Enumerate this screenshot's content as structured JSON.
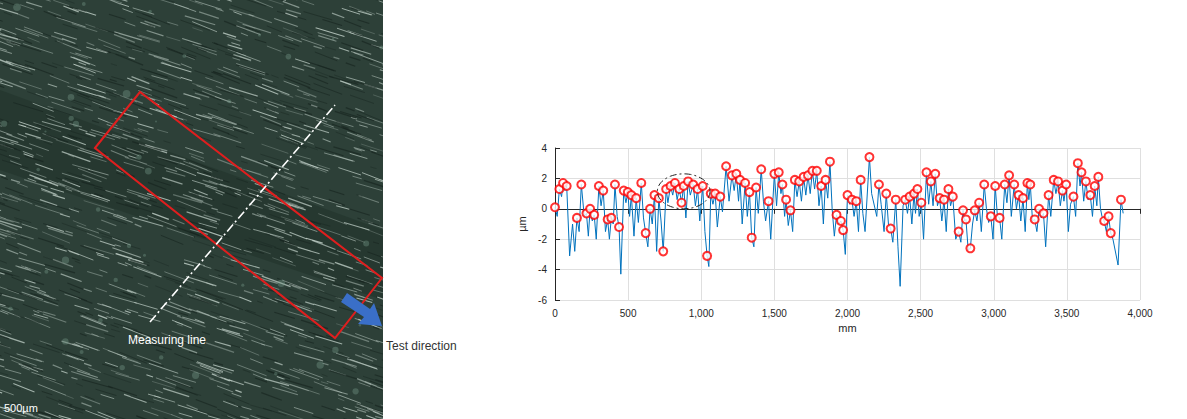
{
  "image": {
    "measuring_line_label": "Measuring line",
    "test_direction_label": "Test direction",
    "scale_bar_label": "500µm"
  },
  "chart_data": {
    "type": "line",
    "x_label": "mm",
    "y_label": "µm",
    "xlim": [
      0,
      4000
    ],
    "xticks": [
      0,
      500,
      {
        "value": 1000,
        "label": "1,000"
      },
      {
        "value": 1500,
        "label": "1,500"
      },
      {
        "value": 2000,
        "label": "2,000"
      },
      {
        "value": 2500,
        "label": "2,500"
      },
      {
        "value": 3000,
        "label": "3,000"
      },
      {
        "value": 3500,
        "label": "3,500"
      },
      {
        "value": 4000,
        "label": "4,000"
      }
    ],
    "ylim": [
      -6,
      4
    ],
    "yticks": [
      -6,
      -4,
      -2,
      0,
      2,
      4
    ],
    "grid": true,
    "region": {
      "x": [
        700,
        1060
      ],
      "y": [
        0.0,
        2.3
      ],
      "line_style": "dashdot"
    },
    "series": [
      {
        "type": "line",
        "marker": "none",
        "color": "#0072bd",
        "x": [
          0,
          15,
          30,
          45,
          55,
          68,
          80,
          100,
          120,
          135,
          150,
          165,
          180,
          200,
          215,
          228,
          240,
          255,
          268,
          282,
          300,
          315,
          330,
          345,
          360,
          372,
          385,
          398,
          410,
          425,
          438,
          450,
          470,
          485,
          498,
          510,
          522,
          540,
          555,
          570,
          590,
          605,
          620,
          635,
          650,
          665,
          680,
          695,
          710,
          725,
          740,
          760,
          772,
          790,
          805,
          820,
          835,
          850,
          865,
          880,
          895,
          910,
          925,
          945,
          960,
          975,
          990,
          1010,
          1025,
          1040,
          1052,
          1065,
          1080,
          1095,
          1110,
          1130,
          1145,
          1170,
          1190,
          1210,
          1225,
          1240,
          1255,
          1265,
          1280,
          1300,
          1315,
          1330,
          1345,
          1360,
          1375,
          1390,
          1410,
          1425,
          1440,
          1460,
          1475,
          1500,
          1515,
          1530,
          1545,
          1555,
          1570,
          1580,
          1595,
          1610,
          1625,
          1640,
          1655,
          1670,
          1685,
          1700,
          1715,
          1730,
          1745,
          1760,
          1775,
          1790,
          1805,
          1820,
          1835,
          1850,
          1865,
          1880,
          1895,
          1910,
          1925,
          1940,
          1955,
          1970,
          1985,
          2000,
          2015,
          2030,
          2045,
          2060,
          2075,
          2090,
          2105,
          2120,
          2150,
          2165,
          2200,
          2215,
          2230,
          2250,
          2265,
          2280,
          2295,
          2310,
          2330,
          2345,
          2360,
          2380,
          2395,
          2410,
          2425,
          2440,
          2455,
          2465,
          2478,
          2490,
          2505,
          2520,
          2540,
          2555,
          2570,
          2585,
          2600,
          2615,
          2630,
          2645,
          2660,
          2675,
          2690,
          2705,
          2720,
          2740,
          2760,
          2775,
          2790,
          2800,
          2810,
          2825,
          2840,
          2855,
          2870,
          2885,
          2900,
          2915,
          2935,
          2950,
          2965,
          2980,
          2995,
          3010,
          3025,
          3040,
          3055,
          3075,
          3090,
          3105,
          3120,
          3140,
          3155,
          3170,
          3185,
          3200,
          3215,
          3230,
          3240,
          3250,
          3265,
          3280,
          3295,
          3310,
          3325,
          3340,
          3355,
          3375,
          3390,
          3410,
          3425,
          3440,
          3455,
          3470,
          3480,
          3495,
          3510,
          3525,
          3545,
          3560,
          3575,
          3590,
          3600,
          3615,
          3630,
          3645,
          3660,
          3675,
          3690,
          3705,
          3715,
          3730,
          3740,
          3755,
          3770,
          3785,
          3800,
          3815,
          3850,
          3870,
          3885
        ],
        "values": [
          0.1,
          -0.5,
          1.3,
          0.8,
          1.7,
          1.2,
          1.5,
          -3.1,
          -1.0,
          -2.8,
          -0.6,
          -1.5,
          1.6,
          -0.5,
          -0.3,
          -1.8,
          0.0,
          -0.8,
          -0.4,
          -2.0,
          1.5,
          0.2,
          1.2,
          -1.5,
          -0.7,
          -2.0,
          -0.6,
          -1.0,
          1.6,
          -0.5,
          -1.2,
          -4.3,
          1.2,
          0.4,
          1.1,
          -0.5,
          0.9,
          -1.8,
          0.7,
          -0.9,
          1.7,
          -0.6,
          -1.6,
          -2.5,
          0.0,
          -1.0,
          0.9,
          -2.8,
          0.7,
          -0.8,
          -2.8,
          1.3,
          0.4,
          1.5,
          0.9,
          1.7,
          0.6,
          1.3,
          0.4,
          1.5,
          -0.6,
          1.8,
          0.9,
          1.6,
          0.2,
          1.3,
          -0.8,
          1.5,
          -1.5,
          -3.1,
          -3.8,
          1.0,
          0.3,
          1.0,
          -1.2,
          0.8,
          -0.2,
          2.8,
          0.5,
          2.2,
          1.2,
          2.3,
          0.5,
          1.9,
          -1.0,
          1.7,
          -0.5,
          1.1,
          -1.9,
          -2.5,
          1.4,
          -0.3,
          2.6,
          0.5,
          -0.8,
          0.5,
          -2.0,
          2.3,
          0.2,
          2.4,
          1.0,
          1.6,
          -0.5,
          0.6,
          -1.1,
          -0.1,
          -1.5,
          1.9,
          0.8,
          1.8,
          0.5,
          2.1,
          0.9,
          2.2,
          1.0,
          2.5,
          1.3,
          2.5,
          0.2,
          1.5,
          -1.0,
          1.9,
          0.7,
          3.1,
          0.0,
          -1.8,
          -0.4,
          -1.0,
          -0.8,
          -1.4,
          -3.0,
          0.9,
          0.3,
          0.6,
          -0.5,
          0.5,
          -1.5,
          1.9,
          -0.3,
          -1.5,
          3.4,
          1.0,
          -0.5,
          1.6,
          0.3,
          -1.5,
          1.0,
          -1.0,
          -1.3,
          -2.2,
          0.6,
          -2.5,
          -5.1,
          0.2,
          0.6,
          -0.3,
          0.8,
          -1.0,
          1.0,
          -0.3,
          1.3,
          -0.5,
          0.4,
          -2.0,
          2.4,
          0.3,
          1.8,
          0.2,
          2.3,
          0.2,
          0.7,
          -0.8,
          0.6,
          -1.5,
          1.3,
          0.2,
          0.8,
          -2.0,
          -1.5,
          -2.2,
          -0.1,
          -0.8,
          -0.7,
          -2.7,
          -2.6,
          -1.0,
          -0.1,
          -0.8,
          0.4,
          -1.5,
          1.6,
          0.0,
          -0.9,
          -0.5,
          -2.0,
          1.5,
          -0.5,
          -0.6,
          -2.0,
          1.6,
          0.4,
          2.2,
          -0.5,
          1.6,
          0.0,
          0.9,
          -0.8,
          0.7,
          -1.5,
          1.7,
          0.6,
          1.6,
          -0.8,
          -0.7,
          -1.5,
          0.0,
          -0.6,
          -0.3,
          -2.5,
          0.9,
          -0.5,
          1.9,
          1.0,
          1.8,
          0.2,
          1.2,
          0.5,
          1.6,
          -1.5,
          0.3,
          0.8,
          -0.5,
          3.0,
          1.5,
          2.4,
          0.5,
          1.8,
          0.6,
          0.9,
          -0.5,
          1.5,
          0.2,
          2.1,
          0.0,
          -0.5,
          -0.8,
          -1.5,
          -0.5,
          -1.6,
          -2.0,
          -3.7,
          0.6,
          -0.3
        ]
      },
      {
        "type": "scatter",
        "marker": "circle",
        "color": "#ff0000",
        "x": [
          0,
          30,
          55,
          80,
          150,
          180,
          215,
          240,
          268,
          300,
          330,
          360,
          385,
          410,
          438,
          470,
          498,
          522,
          555,
          590,
          620,
          650,
          680,
          710,
          740,
          760,
          790,
          820,
          850,
          865,
          880,
          910,
          945,
          975,
          1010,
          1040,
          1065,
          1095,
          1130,
          1170,
          1210,
          1240,
          1265,
          1300,
          1330,
          1345,
          1375,
          1410,
          1460,
          1500,
          1530,
          1555,
          1580,
          1610,
          1640,
          1670,
          1700,
          1730,
          1760,
          1790,
          1820,
          1850,
          1880,
          1925,
          1955,
          1970,
          2000,
          2030,
          2060,
          2090,
          2150,
          2215,
          2265,
          2295,
          2330,
          2395,
          2425,
          2455,
          2478,
          2505,
          2540,
          2570,
          2600,
          2630,
          2660,
          2690,
          2720,
          2760,
          2790,
          2810,
          2840,
          2870,
          2900,
          2935,
          2980,
          3010,
          3040,
          3075,
          3105,
          3140,
          3170,
          3200,
          3230,
          3250,
          3280,
          3310,
          3340,
          3375,
          3410,
          3440,
          3470,
          3495,
          3545,
          3575,
          3600,
          3630,
          3660,
          3690,
          3715,
          3755,
          3785,
          3800,
          3870
        ],
        "values": [
          0.1,
          1.3,
          1.7,
          1.5,
          -0.6,
          1.6,
          -0.3,
          0.0,
          -0.4,
          1.5,
          1.2,
          -0.7,
          -0.6,
          1.6,
          -1.2,
          1.2,
          1.1,
          0.9,
          0.7,
          1.7,
          -1.6,
          0.0,
          0.9,
          0.7,
          -2.8,
          1.3,
          1.5,
          1.7,
          1.3,
          0.4,
          1.5,
          1.8,
          1.6,
          1.3,
          1.5,
          -3.1,
          1.0,
          1.0,
          0.8,
          2.8,
          2.2,
          2.3,
          1.9,
          1.7,
          1.1,
          -1.9,
          1.4,
          2.6,
          0.5,
          2.3,
          2.4,
          1.6,
          0.6,
          -0.1,
          1.9,
          1.8,
          2.1,
          2.2,
          2.5,
          2.5,
          1.5,
          1.9,
          3.1,
          -0.4,
          -0.8,
          -1.4,
          0.9,
          0.6,
          0.5,
          1.9,
          3.4,
          1.6,
          1.0,
          -1.3,
          0.6,
          0.6,
          0.8,
          1.0,
          1.3,
          0.4,
          2.4,
          1.8,
          2.3,
          0.7,
          0.6,
          1.3,
          0.8,
          -1.5,
          -0.1,
          -0.7,
          -2.6,
          -0.1,
          0.4,
          1.6,
          -0.5,
          1.5,
          -0.6,
          1.6,
          2.2,
          1.6,
          0.9,
          0.7,
          1.7,
          1.6,
          -0.7,
          0.0,
          -0.3,
          0.9,
          1.9,
          1.8,
          1.2,
          1.6,
          0.8,
          3.0,
          2.4,
          1.8,
          0.9,
          1.5,
          2.1,
          -0.8,
          -0.5,
          -1.6,
          0.6
        ]
      }
    ]
  }
}
